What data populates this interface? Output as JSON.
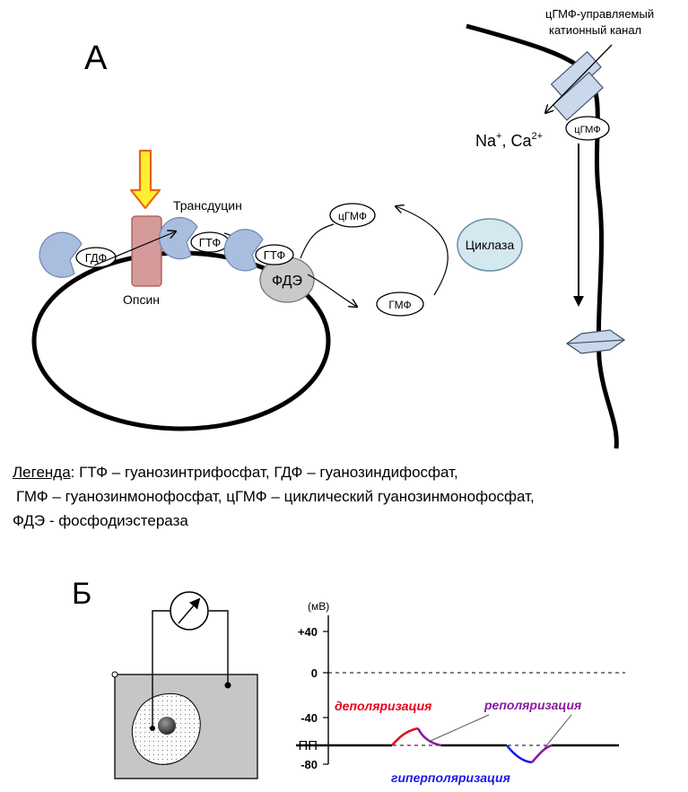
{
  "panel_a": {
    "label": "А",
    "channel_label_line1": "цГМФ-управляемый",
    "channel_label_line2": "катионный канал",
    "ions": {
      "na": "Na",
      "na_sup": "+",
      "sep": ", Ca",
      "ca_sup": "2+"
    },
    "transducin": "Трансдуцин",
    "opsin": "Опсин",
    "gdp": "ГДФ",
    "gtp_1": "ГТФ",
    "gtp_2": "ГТФ",
    "pde": "ФДЭ",
    "cgmp_1": "цГМФ",
    "cgmp_2": "цГМФ",
    "gmp": "ГМФ",
    "cyclase": "Циклаза"
  },
  "legend": {
    "title": "Легенда",
    "line1_rest": ": ГТФ – гуанозинтрифосфат, ГДФ – гуанозиндифосфат,",
    "line2": "ГМФ – гуанозинмонофосфат, цГМФ – циклический гуанозинмонофосфат,",
    "line3": "ФДЭ - фосфодиэстераза"
  },
  "panel_b": {
    "label": "Б",
    "units": "(мВ)",
    "ticks": [
      "+40",
      "0",
      "-40",
      "ПП",
      "-80"
    ],
    "depolarization": "деполяризация",
    "repolarization": "реполяризация",
    "hyperpolarization": "гиперполяризация"
  },
  "colors": {
    "protein_blue": "#a9bedf",
    "opsin_red": "#d59a9a",
    "pde_gray": "#c9c9c9",
    "cyclase_fill": "#d4e8f0",
    "arrow_yellow": "#ffee33",
    "arrow_orange": "#e8680c",
    "depol_red": "#e8001a",
    "repol_purple": "#8a1aa0",
    "hyper_blue": "#1a1ae8"
  }
}
